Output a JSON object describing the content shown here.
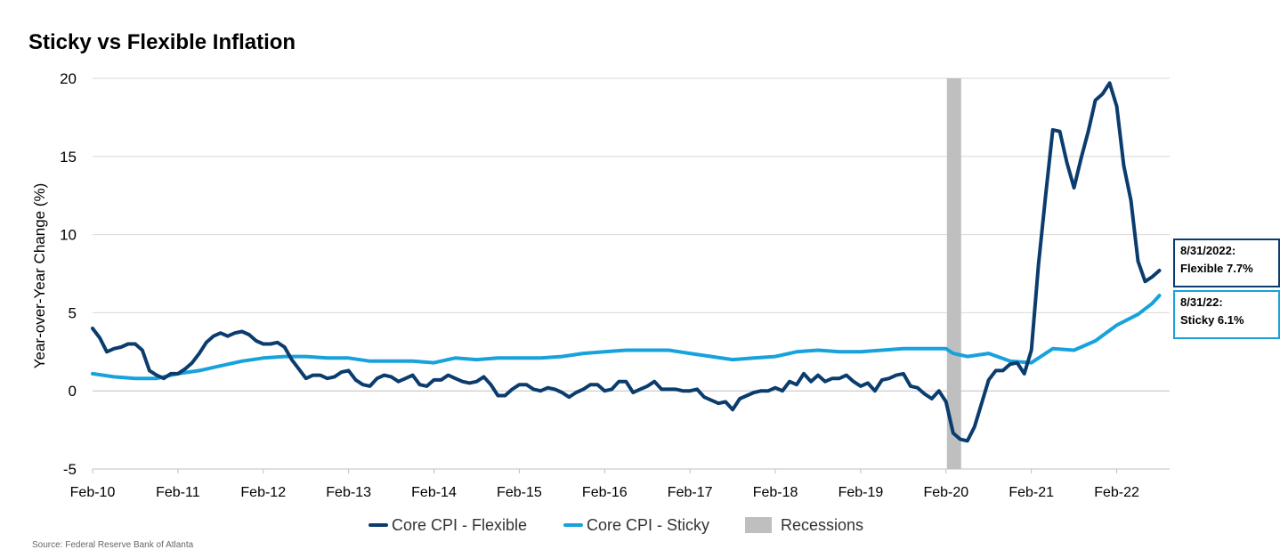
{
  "title": "Sticky vs Flexible Inflation",
  "source": "Source: Federal Reserve Bank of Atlanta",
  "colors": {
    "flexible": "#0b3c6e",
    "sticky": "#18a2dc",
    "recession": "#bfbfbf",
    "grid": "#d9d9d9"
  },
  "callouts": {
    "flexible": {
      "line1": "8/31/2022:",
      "line2": "Flexible 7.7%"
    },
    "sticky": {
      "line1": "8/31/22:",
      "line2": "Sticky 6.1%"
    }
  },
  "legend": {
    "flexible": "Core CPI - Flexible",
    "sticky": "Core CPI - Sticky",
    "recession": "Recessions"
  },
  "chart_data": {
    "type": "line",
    "ylabel": "Year-over-Year Change (%)",
    "xlabel": "",
    "ylim": [
      -5,
      20
    ],
    "yticks": [
      -5,
      0,
      5,
      10,
      15,
      20
    ],
    "xlim": [
      "2010-02",
      "2022-08"
    ],
    "xticks": [
      {
        "date": "2010-02",
        "label": "Feb-10"
      },
      {
        "date": "2011-02",
        "label": "Feb-11"
      },
      {
        "date": "2012-02",
        "label": "Feb-12"
      },
      {
        "date": "2013-02",
        "label": "Feb-13"
      },
      {
        "date": "2014-02",
        "label": "Feb-14"
      },
      {
        "date": "2015-02",
        "label": "Feb-15"
      },
      {
        "date": "2016-02",
        "label": "Feb-16"
      },
      {
        "date": "2017-02",
        "label": "Feb-17"
      },
      {
        "date": "2018-02",
        "label": "Feb-18"
      },
      {
        "date": "2019-02",
        "label": "Feb-19"
      },
      {
        "date": "2020-02",
        "label": "Feb-20"
      },
      {
        "date": "2021-02",
        "label": "Feb-21"
      },
      {
        "date": "2022-02",
        "label": "Feb-22"
      }
    ],
    "grid": true,
    "legend_position": "bottom",
    "recessions": [
      {
        "start": "2020-02",
        "end": "2020-04"
      }
    ],
    "series": [
      {
        "name": "Core CPI - Flexible",
        "points": [
          [
            "2010-02",
            4.0
          ],
          [
            "2010-03",
            3.4
          ],
          [
            "2010-04",
            2.5
          ],
          [
            "2010-05",
            2.7
          ],
          [
            "2010-06",
            2.8
          ],
          [
            "2010-07",
            3.0
          ],
          [
            "2010-08",
            3.0
          ],
          [
            "2010-09",
            2.6
          ],
          [
            "2010-10",
            1.3
          ],
          [
            "2010-11",
            1.0
          ],
          [
            "2010-12",
            0.8
          ],
          [
            "2011-01",
            1.1
          ],
          [
            "2011-02",
            1.1
          ],
          [
            "2011-03",
            1.4
          ],
          [
            "2011-04",
            1.8
          ],
          [
            "2011-05",
            2.4
          ],
          [
            "2011-06",
            3.1
          ],
          [
            "2011-07",
            3.5
          ],
          [
            "2011-08",
            3.7
          ],
          [
            "2011-09",
            3.5
          ],
          [
            "2011-10",
            3.7
          ],
          [
            "2011-11",
            3.8
          ],
          [
            "2011-12",
            3.6
          ],
          [
            "2012-01",
            3.2
          ],
          [
            "2012-02",
            3.0
          ],
          [
            "2012-03",
            3.0
          ],
          [
            "2012-04",
            3.1
          ],
          [
            "2012-05",
            2.8
          ],
          [
            "2012-06",
            2.0
          ],
          [
            "2012-07",
            1.4
          ],
          [
            "2012-08",
            0.8
          ],
          [
            "2012-09",
            1.0
          ],
          [
            "2012-10",
            1.0
          ],
          [
            "2012-11",
            0.8
          ],
          [
            "2012-12",
            0.9
          ],
          [
            "2013-01",
            1.2
          ],
          [
            "2013-02",
            1.3
          ],
          [
            "2013-03",
            0.7
          ],
          [
            "2013-04",
            0.4
          ],
          [
            "2013-05",
            0.3
          ],
          [
            "2013-06",
            0.8
          ],
          [
            "2013-07",
            1.0
          ],
          [
            "2013-08",
            0.9
          ],
          [
            "2013-09",
            0.6
          ],
          [
            "2013-10",
            0.8
          ],
          [
            "2013-11",
            1.0
          ],
          [
            "2013-12",
            0.4
          ],
          [
            "2014-01",
            0.3
          ],
          [
            "2014-02",
            0.7
          ],
          [
            "2014-03",
            0.7
          ],
          [
            "2014-04",
            1.0
          ],
          [
            "2014-05",
            0.8
          ],
          [
            "2014-06",
            0.6
          ],
          [
            "2014-07",
            0.5
          ],
          [
            "2014-08",
            0.6
          ],
          [
            "2014-09",
            0.9
          ],
          [
            "2014-10",
            0.4
          ],
          [
            "2014-11",
            -0.3
          ],
          [
            "2014-12",
            -0.3
          ],
          [
            "2015-01",
            0.1
          ],
          [
            "2015-02",
            0.4
          ],
          [
            "2015-03",
            0.4
          ],
          [
            "2015-04",
            0.1
          ],
          [
            "2015-05",
            0.0
          ],
          [
            "2015-06",
            0.2
          ],
          [
            "2015-07",
            0.1
          ],
          [
            "2015-08",
            -0.1
          ],
          [
            "2015-09",
            -0.4
          ],
          [
            "2015-10",
            -0.1
          ],
          [
            "2015-11",
            0.1
          ],
          [
            "2015-12",
            0.4
          ],
          [
            "2016-01",
            0.4
          ],
          [
            "2016-02",
            0.0
          ],
          [
            "2016-03",
            0.1
          ],
          [
            "2016-04",
            0.6
          ],
          [
            "2016-05",
            0.6
          ],
          [
            "2016-06",
            -0.1
          ],
          [
            "2016-07",
            0.1
          ],
          [
            "2016-08",
            0.3
          ],
          [
            "2016-09",
            0.6
          ],
          [
            "2016-10",
            0.1
          ],
          [
            "2016-11",
            0.1
          ],
          [
            "2016-12",
            0.1
          ],
          [
            "2017-01",
            0.0
          ],
          [
            "2017-02",
            0.0
          ],
          [
            "2017-03",
            0.1
          ],
          [
            "2017-04",
            -0.4
          ],
          [
            "2017-05",
            -0.6
          ],
          [
            "2017-06",
            -0.8
          ],
          [
            "2017-07",
            -0.7
          ],
          [
            "2017-08",
            -1.2
          ],
          [
            "2017-09",
            -0.5
          ],
          [
            "2017-10",
            -0.3
          ],
          [
            "2017-11",
            -0.1
          ],
          [
            "2017-12",
            0.0
          ],
          [
            "2018-01",
            0.0
          ],
          [
            "2018-02",
            0.2
          ],
          [
            "2018-03",
            0.0
          ],
          [
            "2018-04",
            0.6
          ],
          [
            "2018-05",
            0.4
          ],
          [
            "2018-06",
            1.1
          ],
          [
            "2018-07",
            0.6
          ],
          [
            "2018-08",
            1.0
          ],
          [
            "2018-09",
            0.6
          ],
          [
            "2018-10",
            0.8
          ],
          [
            "2018-11",
            0.8
          ],
          [
            "2018-12",
            1.0
          ],
          [
            "2019-01",
            0.6
          ],
          [
            "2019-02",
            0.3
          ],
          [
            "2019-03",
            0.5
          ],
          [
            "2019-04",
            0.0
          ],
          [
            "2019-05",
            0.7
          ],
          [
            "2019-06",
            0.8
          ],
          [
            "2019-07",
            1.0
          ],
          [
            "2019-08",
            1.1
          ],
          [
            "2019-09",
            0.3
          ],
          [
            "2019-10",
            0.2
          ],
          [
            "2019-11",
            -0.2
          ],
          [
            "2019-12",
            -0.5
          ],
          [
            "2020-01",
            0.0
          ],
          [
            "2020-02",
            -0.7
          ],
          [
            "2020-03",
            -2.7
          ],
          [
            "2020-04",
            -3.1
          ],
          [
            "2020-05",
            -3.2
          ],
          [
            "2020-06",
            -2.3
          ],
          [
            "2020-07",
            -0.8
          ],
          [
            "2020-08",
            0.7
          ],
          [
            "2020-09",
            1.3
          ],
          [
            "2020-10",
            1.3
          ],
          [
            "2020-11",
            1.7
          ],
          [
            "2020-12",
            1.8
          ],
          [
            "2021-01",
            1.1
          ],
          [
            "2021-02",
            2.6
          ],
          [
            "2021-03",
            8.1
          ],
          [
            "2021-04",
            12.5
          ],
          [
            "2021-05",
            16.7
          ],
          [
            "2021-06",
            16.6
          ],
          [
            "2021-07",
            14.6
          ],
          [
            "2021-08",
            13.0
          ],
          [
            "2021-09",
            14.9
          ],
          [
            "2021-10",
            16.6
          ],
          [
            "2021-11",
            18.6
          ],
          [
            "2021-12",
            19.0
          ],
          [
            "2022-01",
            19.7
          ],
          [
            "2022-02",
            18.2
          ],
          [
            "2022-03",
            14.4
          ],
          [
            "2022-04",
            12.2
          ],
          [
            "2022-05",
            8.3
          ],
          [
            "2022-06",
            7.0
          ],
          [
            "2022-07",
            7.3
          ],
          [
            "2022-08",
            7.7
          ]
        ]
      },
      {
        "name": "Core CPI - Sticky",
        "points": [
          [
            "2010-02",
            1.1
          ],
          [
            "2010-05",
            0.9
          ],
          [
            "2010-08",
            0.8
          ],
          [
            "2010-11",
            0.8
          ],
          [
            "2011-02",
            1.1
          ],
          [
            "2011-05",
            1.3
          ],
          [
            "2011-08",
            1.6
          ],
          [
            "2011-11",
            1.9
          ],
          [
            "2012-02",
            2.1
          ],
          [
            "2012-05",
            2.2
          ],
          [
            "2012-08",
            2.2
          ],
          [
            "2012-11",
            2.1
          ],
          [
            "2013-02",
            2.1
          ],
          [
            "2013-05",
            1.9
          ],
          [
            "2013-08",
            1.9
          ],
          [
            "2013-11",
            1.9
          ],
          [
            "2014-02",
            1.8
          ],
          [
            "2014-05",
            2.1
          ],
          [
            "2014-08",
            2.0
          ],
          [
            "2014-11",
            2.1
          ],
          [
            "2015-02",
            2.1
          ],
          [
            "2015-05",
            2.1
          ],
          [
            "2015-08",
            2.2
          ],
          [
            "2015-11",
            2.4
          ],
          [
            "2016-02",
            2.5
          ],
          [
            "2016-05",
            2.6
          ],
          [
            "2016-08",
            2.6
          ],
          [
            "2016-11",
            2.6
          ],
          [
            "2017-02",
            2.4
          ],
          [
            "2017-05",
            2.2
          ],
          [
            "2017-08",
            2.0
          ],
          [
            "2017-11",
            2.1
          ],
          [
            "2018-02",
            2.2
          ],
          [
            "2018-05",
            2.5
          ],
          [
            "2018-08",
            2.6
          ],
          [
            "2018-11",
            2.5
          ],
          [
            "2019-02",
            2.5
          ],
          [
            "2019-05",
            2.6
          ],
          [
            "2019-08",
            2.7
          ],
          [
            "2019-11",
            2.7
          ],
          [
            "2020-02",
            2.7
          ],
          [
            "2020-03",
            2.4
          ],
          [
            "2020-05",
            2.2
          ],
          [
            "2020-08",
            2.4
          ],
          [
            "2020-11",
            1.9
          ],
          [
            "2021-02",
            1.8
          ],
          [
            "2021-05",
            2.7
          ],
          [
            "2021-08",
            2.6
          ],
          [
            "2021-11",
            3.2
          ],
          [
            "2022-02",
            4.2
          ],
          [
            "2022-05",
            4.9
          ],
          [
            "2022-07",
            5.6
          ],
          [
            "2022-08",
            6.1
          ]
        ]
      }
    ]
  }
}
